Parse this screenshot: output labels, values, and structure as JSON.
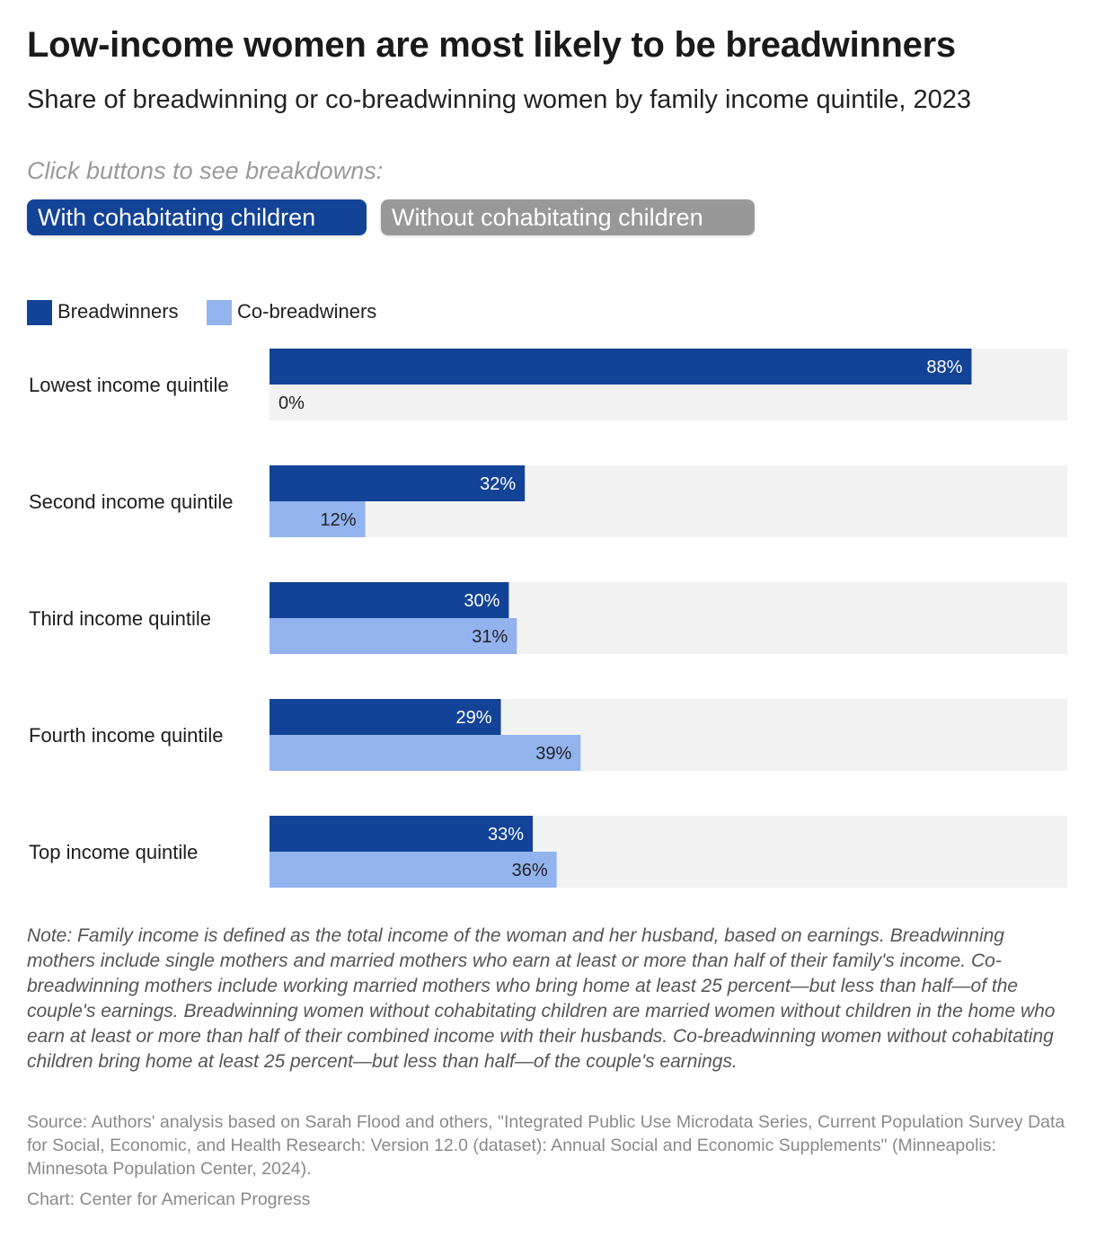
{
  "header": {
    "title": "Low-income women are most likely to be breadwinners",
    "subtitle": "Share of breadwinning or co-breadwinning women by family income quintile, 2023"
  },
  "controls": {
    "prompt": "Click buttons to see breakdowns:",
    "buttons": [
      {
        "label": "With cohabitating children",
        "active": true
      },
      {
        "label": "Without cohabitating children",
        "active": false
      }
    ]
  },
  "colors": {
    "breadwinners": "#134396",
    "co_breadwinners": "#93b3ef",
    "track": "#f2f2f2"
  },
  "chart_data": {
    "type": "bar",
    "orientation": "horizontal",
    "categories": [
      "Lowest income quintile",
      "Second income quintile",
      "Third income quintile",
      "Fourth income quintile",
      "Top income quintile"
    ],
    "series": [
      {
        "name": "Breadwinners",
        "values": [
          88,
          32,
          30,
          29,
          33
        ],
        "labels": [
          "88%",
          "32%",
          "30%",
          "29%",
          "33%"
        ]
      },
      {
        "name": "Co-breadwiners",
        "values": [
          0,
          12,
          31,
          39,
          36
        ],
        "labels": [
          "0%",
          "12%",
          "31%",
          "39%",
          "36%"
        ]
      }
    ],
    "xlim": [
      0,
      100
    ],
    "legend": "top-left",
    "unit": "%"
  },
  "footer": {
    "note": "Note: Family income is defined as the total income of the woman and her husband, based on earnings. Breadwinning mothers include single mothers and married mothers who earn at least or more than half of their family's income. Co-breadwinning mothers include working married mothers who bring home at least 25 percent—but less than half—of the couple's earnings. Breadwinning women without cohabitating children are married women without children in the home who earn at least or more than half of their combined income with their husbands. Co-breadwinning women without cohabitating children bring home at least 25 percent—but less than half—of the couple's earnings.",
    "source": "Source: Authors' analysis based on Sarah Flood and others, \"Integrated Public Use Microdata Series, Current Population Survey Data for Social, Economic, and Health Research: Version 12.0 (dataset): Annual Social and Economic Supplements\" (Minneapolis: Minnesota Population Center, 2024).",
    "credit": "Chart: Center for American Progress"
  }
}
